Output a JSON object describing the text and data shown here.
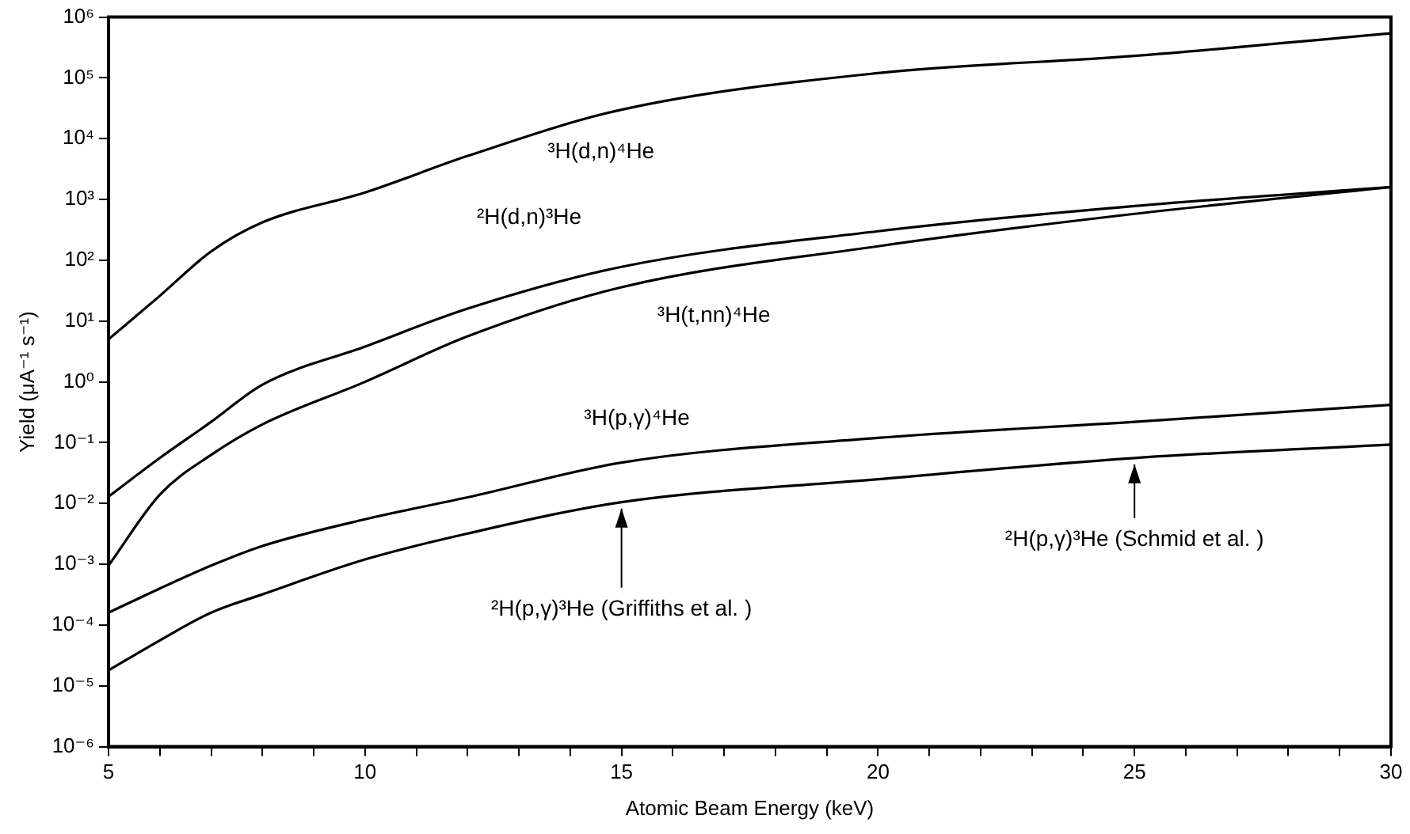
{
  "chart_data": {
    "type": "line",
    "xlabel": "Atomic Beam Energy (keV)",
    "ylabel": "Yield (μA⁻¹ s⁻¹)",
    "log": "y",
    "x": [
      5,
      6,
      7,
      8,
      10,
      12,
      15,
      20,
      25,
      30
    ],
    "series": [
      {
        "name": "³H(d,n)⁴He",
        "color": "#000000",
        "values": [
          5,
          26,
          140,
          420,
          1300,
          5200,
          30000,
          120000,
          230000,
          540000
        ]
      },
      {
        "name": "²H(d,n)³He",
        "color": "#000000",
        "values": [
          0.013,
          0.056,
          0.22,
          0.9,
          3.8,
          16,
          78,
          300,
          780,
          1600
        ]
      },
      {
        "name": "³H(t,nn)⁴He",
        "color": "#000000",
        "values": [
          0.00095,
          0.014,
          0.063,
          0.2,
          1.0,
          5.6,
          36,
          170,
          580,
          1600
        ]
      },
      {
        "name": "³H(p,γ)⁴He",
        "color": "#000000",
        "values": [
          0.00016,
          0.0004,
          0.00095,
          0.002,
          0.0055,
          0.0126,
          0.047,
          0.12,
          0.22,
          0.42
        ]
      },
      {
        "color": "#000000",
        "values": [
          1.8e-05,
          5.6e-05,
          0.00016,
          0.00032,
          0.0012,
          0.0032,
          0.0105,
          0.025,
          0.056,
          0.093
        ]
      }
    ],
    "xlim": [
      5,
      30
    ],
    "xticks": [
      5,
      {
        "value": 6,
        "label": null
      },
      {
        "value": 7,
        "label": null
      },
      {
        "value": 8,
        "label": null
      },
      {
        "value": 9,
        "label": null
      },
      10,
      {
        "value": 11,
        "label": null
      },
      {
        "value": 12,
        "label": null
      },
      {
        "value": 13,
        "label": null
      },
      {
        "value": 14,
        "label": null
      },
      15,
      {
        "value": 16,
        "label": null
      },
      {
        "value": 17,
        "label": null
      },
      {
        "value": 18,
        "label": null
      },
      {
        "value": 19,
        "label": null
      },
      20,
      {
        "value": 21,
        "label": null
      },
      {
        "value": 22,
        "label": null
      },
      {
        "value": 23,
        "label": null
      },
      {
        "value": 24,
        "label": null
      },
      25,
      {
        "value": 26,
        "label": null
      },
      {
        "value": 27,
        "label": null
      },
      {
        "value": 28,
        "label": null
      },
      {
        "value": 29,
        "label": null
      },
      30
    ],
    "ylim": [
      1e-06,
      1000000
    ],
    "yticks": [
      {
        "value": 1e-06,
        "label": "10⁻⁶"
      },
      {
        "value": 1e-05,
        "label": "10⁻⁵"
      },
      {
        "value": 0.0001,
        "label": "10⁻⁴"
      },
      {
        "value": 0.001,
        "label": "10⁻³"
      },
      {
        "value": 0.01,
        "label": "10⁻²"
      },
      {
        "value": 0.1,
        "label": "10⁻¹"
      },
      {
        "value": 1,
        "label": "10⁰"
      },
      {
        "value": 10,
        "label": "10¹"
      },
      {
        "value": 100,
        "label": "10²"
      },
      {
        "value": 1000,
        "label": "10³"
      },
      {
        "value": 10000,
        "label": "10⁴"
      },
      {
        "value": 100000,
        "label": "10⁵"
      },
      {
        "value": 1000000,
        "label": "10⁶"
      }
    ],
    "annotations": [
      {
        "text": "²H(p,γ)³He (Griffiths et al. )",
        "x": 15,
        "y": 0.0105
      },
      {
        "text": "²H(p,γ)³He (Schmid et al. )",
        "x": 25,
        "y": 0.056
      }
    ],
    "grid": false,
    "legend": false,
    "marker": "none",
    "line_style": "solid"
  }
}
